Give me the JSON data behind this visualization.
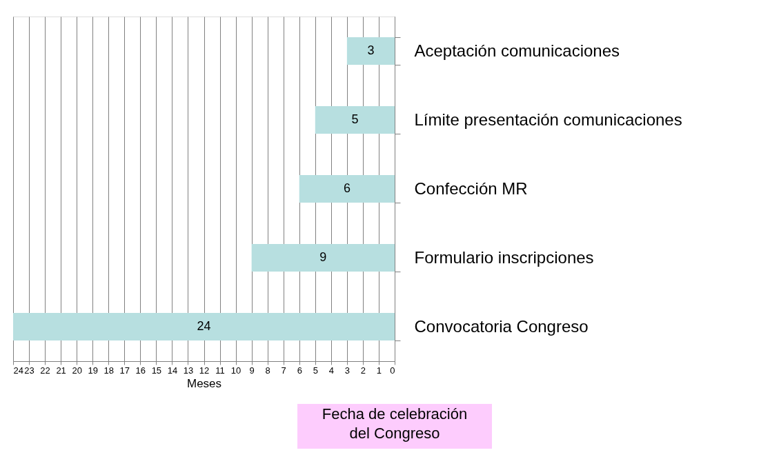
{
  "chart_data": {
    "type": "bar",
    "orientation": "horizontal",
    "xlabel": "Meses",
    "categories": [
      "Aceptación comunicaciones",
      "Límite presentación comunicaciones",
      "Confección MR",
      "Formulario inscripciones",
      "Convocatoria Congreso"
    ],
    "values": [
      3,
      5,
      6,
      9,
      24
    ],
    "color": "#b7dfe0",
    "data_labels": true,
    "xlim": [
      24,
      0
    ],
    "xticks": [
      24,
      23,
      22,
      21,
      20,
      19,
      18,
      17,
      16,
      15,
      14,
      13,
      12,
      11,
      10,
      9,
      8,
      7,
      6,
      5,
      4,
      3,
      2,
      1,
      0
    ],
    "grid": "x",
    "annotations": [
      "Fecha de celebración\ndel Congreso"
    ]
  }
}
